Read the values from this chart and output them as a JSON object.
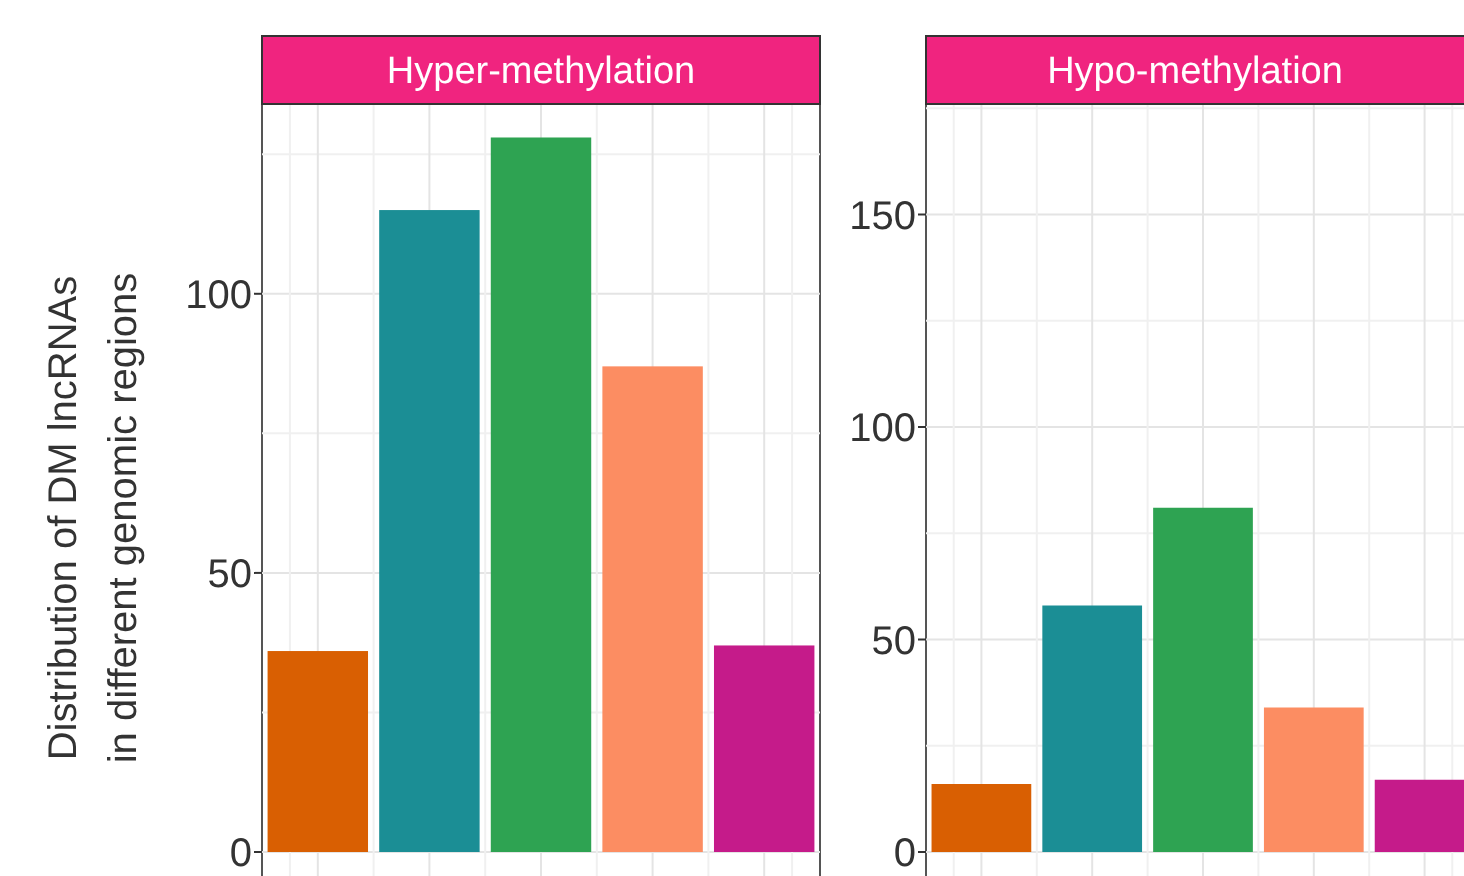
{
  "chart_data": [
    {
      "type": "bar",
      "title": "Hyper-methylation",
      "ylabel": "Distribution of DM lncRNAs\nin different genomic regions",
      "categories": [
        null,
        null,
        null,
        null,
        null
      ],
      "colors": [
        "#d95f02",
        "#1b8e95",
        "#2ea352",
        "#fc8d62",
        "#c51b8a"
      ],
      "values": [
        36,
        115,
        128,
        87,
        37
      ],
      "ylim": [
        0,
        134
      ],
      "yticks": [
        0,
        50,
        100
      ],
      "grid": true,
      "tick_labels": "y"
    },
    {
      "type": "bar",
      "title": "Hypo-methylation",
      "categories": [
        null,
        null,
        null,
        null,
        null
      ],
      "colors": [
        "#d95f02",
        "#1b8e95",
        "#2ea352",
        "#fc8d62",
        "#c51b8a"
      ],
      "values": [
        16,
        58,
        81,
        34,
        17
      ],
      "ylim": [
        0,
        176
      ],
      "yticks": [
        0,
        50,
        100,
        150
      ],
      "grid": true,
      "tick_labels": "y"
    }
  ]
}
